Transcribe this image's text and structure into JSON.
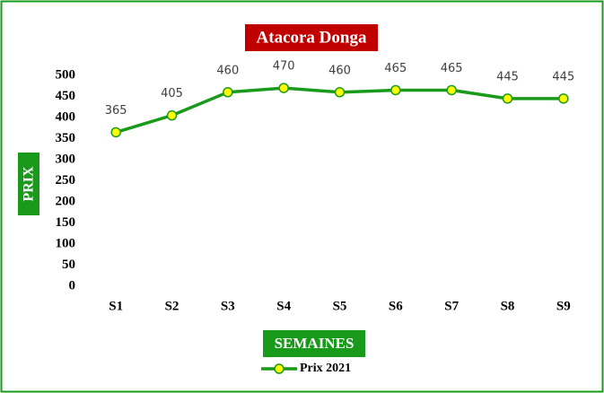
{
  "chart_data": {
    "type": "line",
    "title": "Atacora Donga",
    "xlabel": "SEMAINES",
    "ylabel": "PRIX",
    "categories": [
      "S1",
      "S2",
      "S3",
      "S4",
      "S5",
      "S6",
      "S7",
      "S8",
      "S9"
    ],
    "series": [
      {
        "name": "Prix 2021",
        "color": "#1a9a1a",
        "marker_color": "#ffff00",
        "values": [
          365,
          405,
          460,
          470,
          460,
          465,
          465,
          445,
          445
        ]
      }
    ],
    "ylim": [
      0,
      500
    ],
    "yticks": [
      0,
      50,
      100,
      150,
      200,
      250,
      300,
      350,
      400,
      450,
      500
    ],
    "grid": false,
    "legend": "bottom",
    "data_labels": true
  }
}
